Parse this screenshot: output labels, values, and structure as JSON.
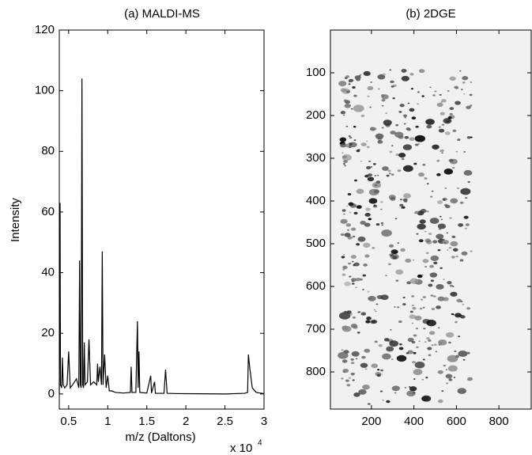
{
  "chart_data": [
    {
      "type": "line",
      "title": "(a) MALDI-MS",
      "x_label": "m/z (Daltons)",
      "y_label": "Intensity",
      "x_multiplier": "x 10",
      "x_multiplier_exponent": "4",
      "color": "#000000",
      "xlim": [
        0.38,
        3
      ],
      "ylim": [
        -5,
        120
      ],
      "xticks": [
        0.5,
        1,
        1.5,
        2,
        2.5,
        3
      ],
      "yticks": [
        0,
        20,
        40,
        60,
        80,
        100,
        120
      ],
      "x": [
        0.38,
        0.39,
        0.395,
        0.41,
        0.42,
        0.43,
        0.45,
        0.48,
        0.5,
        0.52,
        0.55,
        0.6,
        0.63,
        0.64,
        0.65,
        0.66,
        0.67,
        0.68,
        0.69,
        0.7,
        0.71,
        0.74,
        0.76,
        0.78,
        0.82,
        0.86,
        0.87,
        0.88,
        0.9,
        0.92,
        0.93,
        0.94,
        0.96,
        0.98,
        1.0,
        1.02,
        1.05,
        1.1,
        1.2,
        1.29,
        1.3,
        1.31,
        1.36,
        1.38,
        1.39,
        1.4,
        1.41,
        1.5,
        1.55,
        1.56,
        1.6,
        1.61,
        1.72,
        1.74,
        1.76,
        1.9,
        2.5,
        2.75,
        2.79,
        2.8,
        2.82,
        2.85,
        2.9,
        3.0
      ],
      "values": [
        0,
        63,
        3,
        2,
        12,
        3,
        2,
        3,
        14,
        2,
        3,
        5,
        2,
        44,
        3,
        2,
        104,
        3,
        2,
        17,
        3,
        4,
        18,
        3,
        4,
        3,
        10,
        4,
        9,
        3,
        47,
        3,
        13,
        2,
        6,
        1,
        1,
        0.5,
        0.3,
        0.5,
        9,
        0.5,
        0.5,
        24,
        2,
        14,
        0.5,
        0.3,
        6,
        0.3,
        4,
        0.2,
        0.2,
        8,
        0.2,
        0.1,
        0,
        0.2,
        0.5,
        13,
        8,
        2,
        0.5,
        0.1
      ]
    },
    {
      "type": "image",
      "title": "(b) 2DGE",
      "y_inverted": true,
      "xlim": [
        7,
        952
      ],
      "ylim": [
        0,
        887
      ],
      "xticks": [
        200,
        400,
        600,
        800
      ],
      "yticks": [
        100,
        200,
        300,
        400,
        500,
        600,
        700,
        800
      ]
    }
  ]
}
